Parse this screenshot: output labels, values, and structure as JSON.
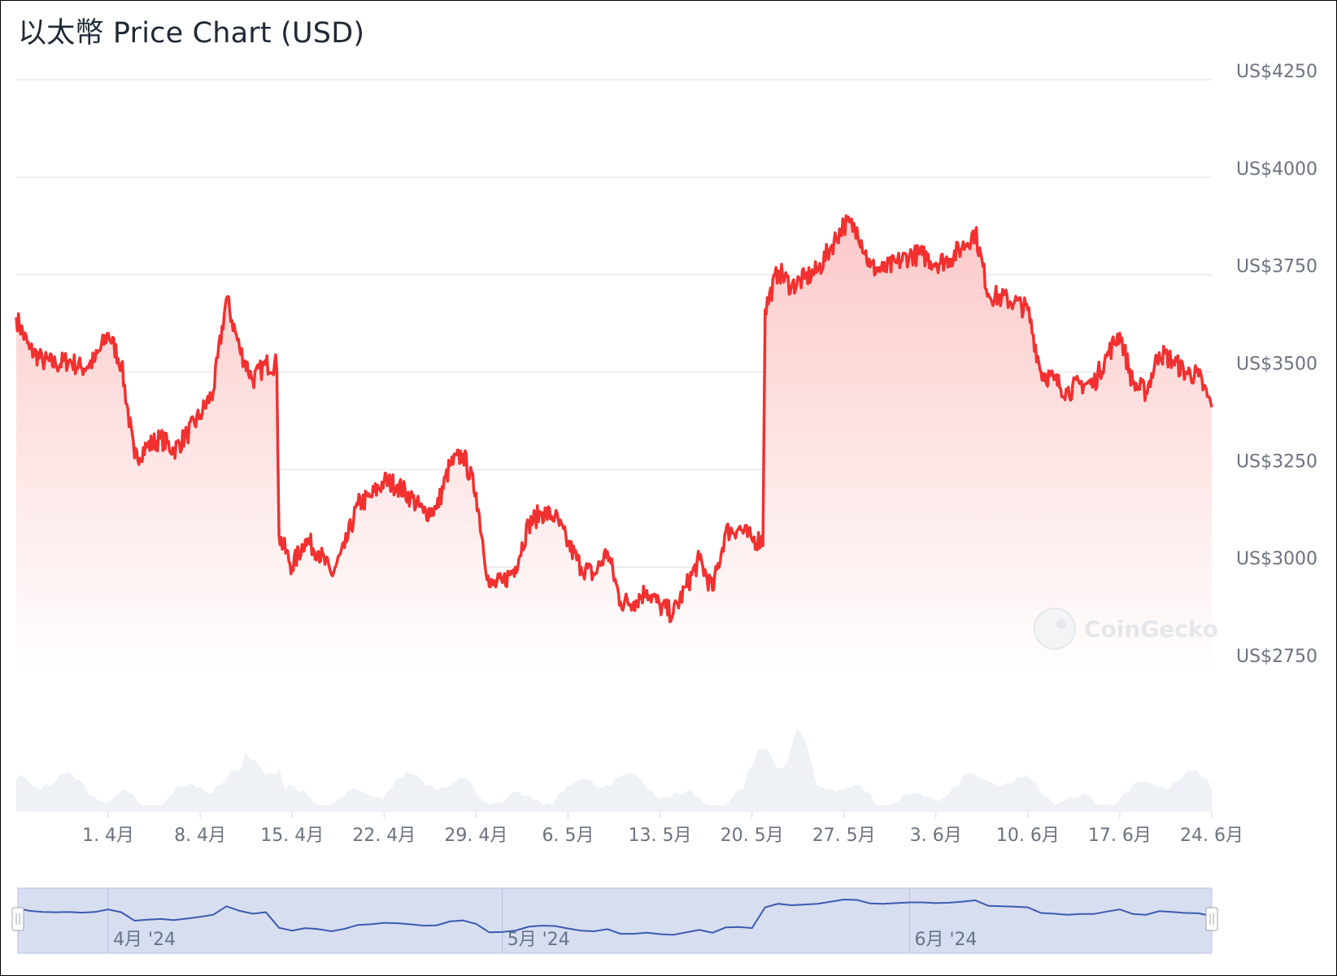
{
  "chart": {
    "title": "以太幣 Price Chart (USD)"
  },
  "colors": {
    "line": "#f23030",
    "area_top": "#fcc5c5",
    "grid": "#e8e8ec",
    "volume": "#eef1f5",
    "navigator_bg": "#d7deef",
    "navigator_line": "#3b5bb0",
    "axis_text": "#6b7280"
  },
  "watermark": {
    "text": "CoinGecko",
    "icon": "gecko-logo-icon"
  },
  "chart_data": {
    "type": "line",
    "title": "以太幣 Price Chart (USD)",
    "xlabel": "",
    "ylabel": "",
    "ylim": [
      2750,
      4250
    ],
    "yticks": [
      2750,
      3000,
      3250,
      3500,
      3750,
      4000,
      4250
    ],
    "ytick_labels": [
      "US$2750",
      "US$3000",
      "US$3250",
      "US$3500",
      "US$3750",
      "US$4000",
      "US$4250"
    ],
    "xlim": [
      "2024-03-25",
      "2024-06-24"
    ],
    "xtick_dates": [
      "2024-04-01",
      "2024-04-08",
      "2024-04-15",
      "2024-04-22",
      "2024-04-29",
      "2024-05-06",
      "2024-05-13",
      "2024-05-20",
      "2024-05-27",
      "2024-06-03",
      "2024-06-10",
      "2024-06-17",
      "2024-06-24"
    ],
    "xtick_labels": [
      "1. 4月",
      "8. 4月",
      "15. 4月",
      "22. 4月",
      "29. 4月",
      "6. 5月",
      "13. 5月",
      "20. 5月",
      "27. 5月",
      "3. 6月",
      "10. 6月",
      "17. 6月",
      "24. 6月"
    ],
    "grid": true,
    "legend": "none",
    "series": [
      {
        "x": [
          "2024-03-25",
          "2024-03-26",
          "2024-03-27",
          "2024-03-28",
          "2024-03-29",
          "2024-03-30",
          "2024-03-31",
          "2024-04-01",
          "2024-04-02",
          "2024-04-03",
          "2024-04-04",
          "2024-04-05",
          "2024-04-06",
          "2024-04-07",
          "2024-04-08",
          "2024-04-09",
          "2024-04-10",
          "2024-04-11",
          "2024-04-12",
          "2024-04-13",
          "2024-04-14",
          "2024-04-15",
          "2024-04-16",
          "2024-04-17",
          "2024-04-18",
          "2024-04-19",
          "2024-04-20",
          "2024-04-21",
          "2024-04-22",
          "2024-04-23",
          "2024-04-24",
          "2024-04-25",
          "2024-04-26",
          "2024-04-27",
          "2024-04-28",
          "2024-04-29",
          "2024-04-30",
          "2024-05-01",
          "2024-05-02",
          "2024-05-03",
          "2024-05-04",
          "2024-05-05",
          "2024-05-06",
          "2024-05-07",
          "2024-05-08",
          "2024-05-09",
          "2024-05-10",
          "2024-05-11",
          "2024-05-12",
          "2024-05-13",
          "2024-05-14",
          "2024-05-15",
          "2024-05-16",
          "2024-05-17",
          "2024-05-18",
          "2024-05-19",
          "2024-05-20",
          "2024-05-21",
          "2024-05-22",
          "2024-05-23",
          "2024-05-24",
          "2024-05-25",
          "2024-05-26",
          "2024-05-27",
          "2024-05-28",
          "2024-05-29",
          "2024-05-30",
          "2024-05-31",
          "2024-06-01",
          "2024-06-02",
          "2024-06-03",
          "2024-06-04",
          "2024-06-05",
          "2024-06-06",
          "2024-06-07",
          "2024-06-08",
          "2024-06-09",
          "2024-06-10",
          "2024-06-11",
          "2024-06-12",
          "2024-06-13",
          "2024-06-14",
          "2024-06-15",
          "2024-06-16",
          "2024-06-17",
          "2024-06-18",
          "2024-06-19",
          "2024-06-20",
          "2024-06-21",
          "2024-06-22",
          "2024-06-23",
          "2024-06-24"
        ],
        "values": [
          3640,
          3560,
          3530,
          3520,
          3530,
          3510,
          3530,
          3600,
          3520,
          3280,
          3310,
          3330,
          3300,
          3340,
          3390,
          3450,
          3690,
          3560,
          3480,
          3520,
          3080,
          3000,
          3070,
          3040,
          2980,
          3050,
          3160,
          3180,
          3220,
          3210,
          3180,
          3140,
          3150,
          3260,
          3290,
          3190,
          2950,
          2960,
          3000,
          3110,
          3140,
          3130,
          3060,
          3000,
          2980,
          3040,
          2910,
          2910,
          2940,
          2900,
          2880,
          2950,
          3020,
          2940,
          3090,
          3100,
          3070,
          3660,
          3760,
          3720,
          3740,
          3760,
          3820,
          3880,
          3870,
          3770,
          3760,
          3780,
          3800,
          3800,
          3780,
          3790,
          3820,
          3860,
          3700,
          3690,
          3680,
          3660,
          3500,
          3480,
          3450,
          3470,
          3470,
          3540,
          3600,
          3470,
          3450,
          3550,
          3530,
          3500,
          3490,
          3410
        ]
      }
    ],
    "volume_peaks": "late-May"
  },
  "navigator": {
    "labels": [
      "4月 '24",
      "5月 '24",
      "6月 '24"
    ],
    "left_handle": "left-handle",
    "right_handle": "right-handle"
  }
}
